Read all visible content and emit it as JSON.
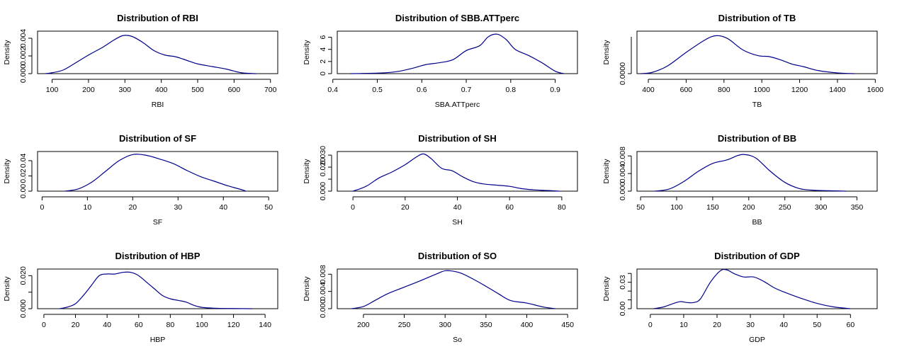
{
  "colors": {
    "curve": "#00008B",
    "axis": "#000000",
    "background": "#ffffff"
  },
  "chart_data": [
    {
      "type": "line",
      "title": "Distribution of RBI",
      "xlabel": "RBI",
      "ylabel": "Density",
      "xlim": [
        60,
        720
      ],
      "ylim": [
        0,
        0.0048
      ],
      "xticks": [
        100,
        200,
        300,
        400,
        500,
        600,
        700
      ],
      "yticks": [
        0,
        0.002,
        0.004
      ],
      "ytick_labels": [
        "0.000",
        "0.002",
        "0.004"
      ],
      "series": [
        {
          "x": [
            80,
            100,
            130,
            160,
            200,
            240,
            270,
            295,
            320,
            350,
            380,
            410,
            440,
            470,
            500,
            540,
            580,
            620,
            660
          ],
          "y": [
            0.0,
            0.0001,
            0.0004,
            0.0011,
            0.0021,
            0.003,
            0.0038,
            0.0043,
            0.0042,
            0.0035,
            0.0026,
            0.0021,
            0.0019,
            0.0015,
            0.0011,
            0.0008,
            0.0005,
            0.0001,
            0.0
          ]
        }
      ]
    },
    {
      "type": "line",
      "title": "Distribution of SBB.ATTperc",
      "xlabel": "SBA.ATTperc",
      "ylabel": "Density",
      "xlim": [
        0.41,
        0.95
      ],
      "ylim": [
        0,
        7
      ],
      "xticks": [
        0.4,
        0.5,
        0.6,
        0.7,
        0.8,
        0.9
      ],
      "xtick_labels": [
        "0.4",
        "0.5",
        "0.6",
        "0.7",
        "0.8",
        "0.9"
      ],
      "yticks": [
        0,
        2,
        4,
        6
      ],
      "ytick_labels": [
        "0",
        "2",
        "4",
        "6"
      ],
      "series": [
        {
          "x": [
            0.44,
            0.48,
            0.52,
            0.55,
            0.58,
            0.61,
            0.64,
            0.67,
            0.7,
            0.73,
            0.75,
            0.77,
            0.79,
            0.81,
            0.84,
            0.87,
            0.9,
            0.92
          ],
          "y": [
            0.0,
            0.05,
            0.15,
            0.4,
            0.9,
            1.5,
            1.8,
            2.3,
            3.8,
            4.6,
            6.1,
            6.5,
            5.6,
            4.0,
            3.0,
            1.8,
            0.4,
            0.0
          ]
        }
      ]
    },
    {
      "type": "line",
      "title": "Distribution of TB",
      "xlabel": "TB",
      "ylabel": "Density",
      "xlim": [
        340,
        1610
      ],
      "ylim": [
        0,
        0.0017
      ],
      "xticks": [
        400,
        600,
        800,
        1000,
        1200,
        1400,
        1600
      ],
      "yticks": [
        0
      ],
      "ytick_labels": [
        "0.0000"
      ],
      "series": [
        {
          "x": [
            360,
            420,
            500,
            600,
            700,
            760,
            820,
            900,
            980,
            1040,
            1100,
            1160,
            1220,
            1300,
            1400,
            1490
          ],
          "y": [
            0.0,
            5e-05,
            0.0003,
            0.00085,
            0.00135,
            0.00152,
            0.0014,
            0.00095,
            0.00072,
            0.00068,
            0.00055,
            0.00038,
            0.00028,
            0.00012,
            3e-05,
            0.0
          ]
        }
      ]
    },
    {
      "type": "line",
      "title": "Distribution of SF",
      "xlabel": "SF",
      "ylabel": "Density",
      "xlim": [
        -1,
        52
      ],
      "ylim": [
        0,
        0.052
      ],
      "xticks": [
        0,
        10,
        20,
        30,
        40,
        50
      ],
      "yticks": [
        0,
        0.02,
        0.04
      ],
      "ytick_labels": [
        "0.00",
        "0.02",
        "0.04"
      ],
      "series": [
        {
          "x": [
            5,
            8,
            11,
            14,
            17,
            20,
            23,
            26,
            29,
            32,
            35,
            38,
            41,
            44,
            45
          ],
          "y": [
            0.0,
            0.003,
            0.012,
            0.026,
            0.04,
            0.048,
            0.047,
            0.042,
            0.036,
            0.027,
            0.019,
            0.013,
            0.007,
            0.002,
            0.0
          ]
        }
      ]
    },
    {
      "type": "line",
      "title": "Distribution of SH",
      "xlabel": "SH",
      "ylabel": "Density",
      "xlim": [
        -6,
        86
      ],
      "ylim": [
        0,
        0.033
      ],
      "xticks": [
        0,
        20,
        40,
        60,
        80
      ],
      "yticks": [
        0,
        0.01,
        0.02,
        0.03
      ],
      "ytick_labels": [
        "0.000",
        "",
        "0.020",
        "0.030"
      ],
      "series": [
        {
          "x": [
            0,
            5,
            10,
            15,
            20,
            24,
            27,
            30,
            34,
            38,
            42,
            46,
            50,
            55,
            60,
            65,
            70,
            75,
            79
          ],
          "y": [
            0.0,
            0.004,
            0.011,
            0.016,
            0.022,
            0.028,
            0.031,
            0.027,
            0.019,
            0.017,
            0.012,
            0.008,
            0.006,
            0.005,
            0.004,
            0.002,
            0.001,
            0.0005,
            0.0
          ]
        }
      ]
    },
    {
      "type": "line",
      "title": "Distribution of BB",
      "xlabel": "BB",
      "ylabel": "Density",
      "xlim": [
        45,
        378
      ],
      "ylim": [
        0,
        0.009
      ],
      "xticks": [
        50,
        100,
        150,
        200,
        250,
        300,
        350
      ],
      "yticks": [
        0,
        0.004,
        0.008
      ],
      "ytick_labels": [
        "0.000",
        "0.004",
        "0.008"
      ],
      "series": [
        {
          "x": [
            70,
            90,
            110,
            130,
            150,
            170,
            185,
            195,
            210,
            230,
            250,
            270,
            290,
            310,
            335
          ],
          "y": [
            0.0,
            0.0005,
            0.0022,
            0.0045,
            0.0063,
            0.0071,
            0.0081,
            0.0083,
            0.0075,
            0.0045,
            0.002,
            0.0006,
            0.0002,
            0.0001,
            0.0
          ]
        }
      ]
    },
    {
      "type": "line",
      "title": "Distribution of HBP",
      "xlabel": "HBP",
      "ylabel": "Density",
      "xlim": [
        -4,
        148
      ],
      "ylim": [
        0,
        0.024
      ],
      "xticks": [
        0,
        20,
        40,
        60,
        80,
        100,
        120,
        140
      ],
      "yticks": [
        0,
        0.01,
        0.02
      ],
      "ytick_labels": [
        "0.000",
        "",
        "0.020"
      ],
      "series": [
        {
          "x": [
            10,
            15,
            20,
            25,
            30,
            35,
            40,
            45,
            50,
            55,
            60,
            65,
            70,
            75,
            80,
            85,
            90,
            95,
            100,
            110,
            120,
            132
          ],
          "y": [
            0.0,
            0.001,
            0.003,
            0.008,
            0.014,
            0.02,
            0.021,
            0.021,
            0.022,
            0.022,
            0.02,
            0.016,
            0.012,
            0.008,
            0.006,
            0.005,
            0.004,
            0.002,
            0.0008,
            0.0002,
            0.0001,
            0.0
          ]
        }
      ]
    },
    {
      "type": "line",
      "title": "Distribution of SO",
      "xlabel": "So",
      "ylabel": "Density",
      "xlim": [
        168,
        462
      ],
      "ylim": [
        0,
        0.0092
      ],
      "xticks": [
        200,
        250,
        300,
        350,
        400,
        450
      ],
      "yticks": [
        0,
        0.004,
        0.008
      ],
      "ytick_labels": [
        "0.000",
        "0.004",
        "0.008"
      ],
      "series": [
        {
          "x": [
            185,
            200,
            215,
            230,
            250,
            270,
            290,
            300,
            310,
            320,
            335,
            350,
            365,
            380,
            400,
            420,
            435
          ],
          "y": [
            0.0,
            0.0005,
            0.002,
            0.0035,
            0.005,
            0.0065,
            0.0081,
            0.0088,
            0.0087,
            0.0082,
            0.0068,
            0.0052,
            0.0035,
            0.0019,
            0.0013,
            0.0004,
            0.0
          ]
        }
      ]
    },
    {
      "type": "line",
      "title": "Distribution of GDP",
      "xlabel": "GDP",
      "ylabel": "Density",
      "xlim": [
        -4,
        68
      ],
      "ylim": [
        0,
        0.045
      ],
      "xticks": [
        0,
        10,
        20,
        30,
        40,
        50,
        60
      ],
      "yticks": [
        0,
        0.01,
        0.02,
        0.03,
        0.04
      ],
      "ytick_labels": [
        "0.00",
        "",
        "",
        "0.03",
        ""
      ],
      "series": [
        {
          "x": [
            1,
            4,
            7,
            9,
            11,
            13,
            15,
            18,
            21,
            23,
            25,
            28,
            31,
            34,
            37,
            40,
            45,
            50,
            55,
            60
          ],
          "y": [
            0.0,
            0.002,
            0.006,
            0.008,
            0.007,
            0.007,
            0.011,
            0.03,
            0.043,
            0.044,
            0.04,
            0.036,
            0.036,
            0.031,
            0.024,
            0.019,
            0.012,
            0.006,
            0.002,
            0.0
          ]
        }
      ]
    }
  ]
}
